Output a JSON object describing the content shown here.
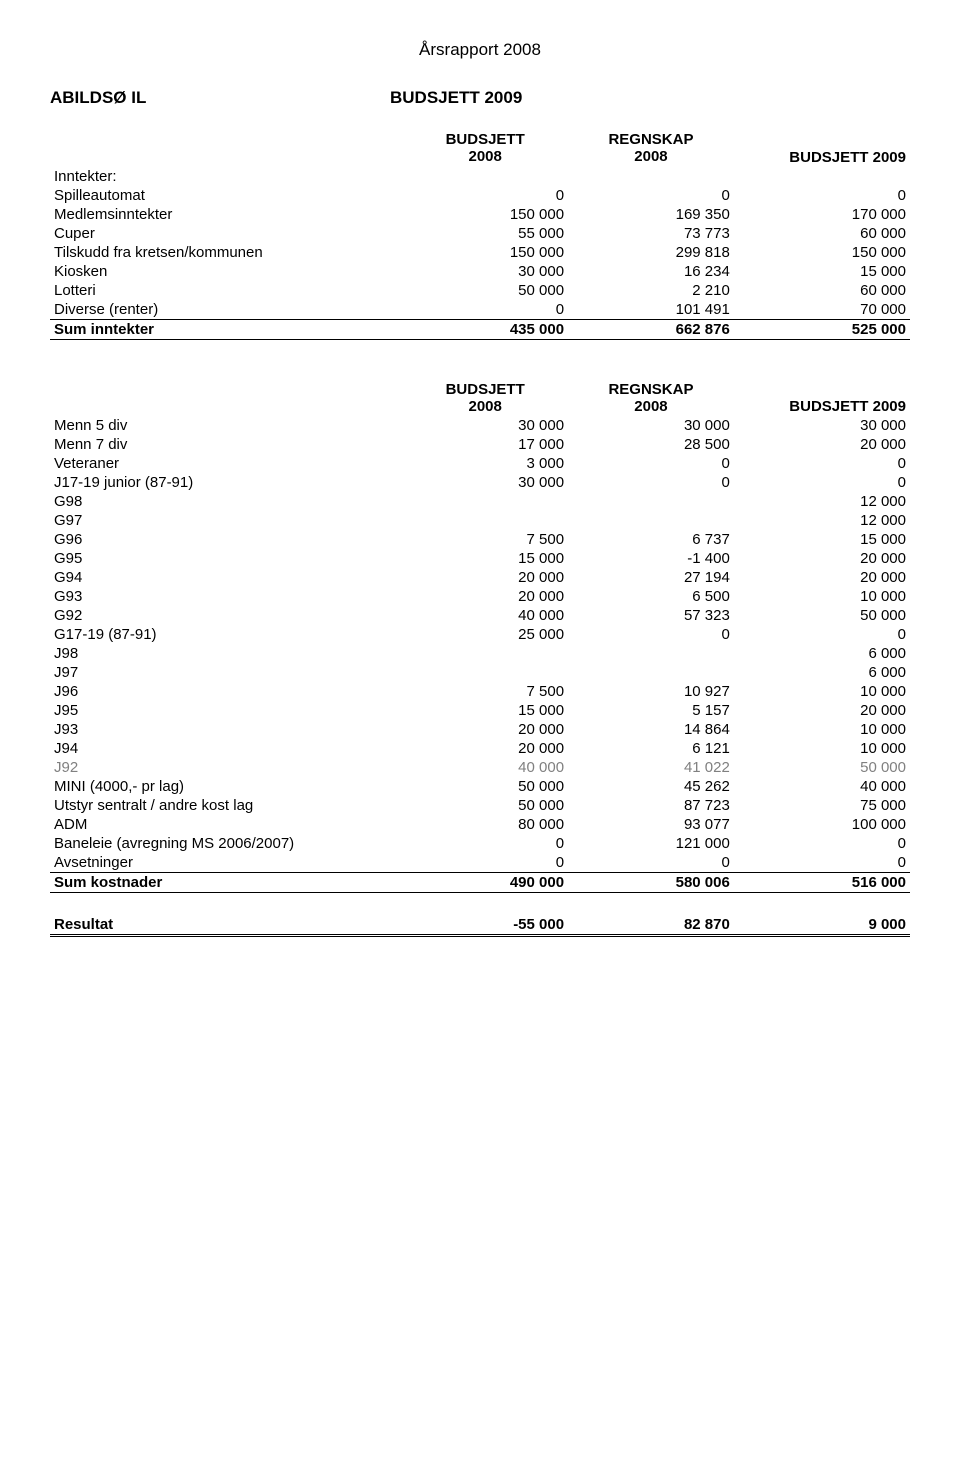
{
  "page_title": "Årsrapport 2008",
  "header": {
    "left": "ABILDSØ IL",
    "right": "BUDSJETT 2009"
  },
  "col_headers": {
    "c1_l1": "BUDSJETT",
    "c1_l2": "2008",
    "c2_l1": "REGNSKAP",
    "c2_l2": "2008",
    "c3": "BUDSJETT 2009"
  },
  "table1": {
    "section": "Inntekter:",
    "rows": [
      {
        "label": "Spilleautomat",
        "v1": "0",
        "v2": "0",
        "v3": "0"
      },
      {
        "label": "Medlemsinntekter",
        "v1": "150 000",
        "v2": "169 350",
        "v3": "170 000"
      },
      {
        "label": "Cuper",
        "v1": "55 000",
        "v2": "73 773",
        "v3": "60 000"
      },
      {
        "label": "Tilskudd fra kretsen/kommunen",
        "v1": "150 000",
        "v2": "299 818",
        "v3": "150 000"
      },
      {
        "label": "Kiosken",
        "v1": "30 000",
        "v2": "16 234",
        "v3": "15 000"
      },
      {
        "label": "Lotteri",
        "v1": "50 000",
        "v2": "2 210",
        "v3": "60 000"
      },
      {
        "label": "Diverse (renter)",
        "v1": "0",
        "v2": "101 491",
        "v3": "70 000"
      }
    ],
    "sum": {
      "label": "Sum  inntekter",
      "v1": "435 000",
      "v2": "662 876",
      "v3": "525 000"
    }
  },
  "table2": {
    "rows": [
      {
        "label": "Menn 5 div",
        "v1": "30 000",
        "v2": "30 000",
        "v3": "30 000"
      },
      {
        "label": "Menn 7 div",
        "v1": "17 000",
        "v2": "28 500",
        "v3": "20 000"
      },
      {
        "label": "Veteraner",
        "v1": "3 000",
        "v2": "0",
        "v3": "0"
      },
      {
        "label": "J17-19 junior (87-91)",
        "v1": "30 000",
        "v2": "0",
        "v3": "0"
      },
      {
        "label": "G98",
        "v1": "",
        "v2": "",
        "v3": "12 000"
      },
      {
        "label": "G97",
        "v1": "",
        "v2": "",
        "v3": "12 000"
      },
      {
        "label": "G96",
        "v1": "7 500",
        "v2": "6 737",
        "v3": "15 000"
      },
      {
        "label": "G95",
        "v1": "15 000",
        "v2": "-1 400",
        "v3": "20 000"
      },
      {
        "label": "G94",
        "v1": "20 000",
        "v2": "27 194",
        "v3": "20 000"
      },
      {
        "label": "G93",
        "v1": "20 000",
        "v2": "6 500",
        "v3": "10 000"
      },
      {
        "label": "G92",
        "v1": "40 000",
        "v2": "57 323",
        "v3": "50 000"
      },
      {
        "label": "G17-19 (87-91)",
        "v1": "25 000",
        "v2": "0",
        "v3": "0"
      },
      {
        "label": "J98",
        "v1": "",
        "v2": "",
        "v3": "6 000"
      },
      {
        "label": "J97",
        "v1": "",
        "v2": "",
        "v3": "6 000"
      },
      {
        "label": "J96",
        "v1": "7 500",
        "v2": "10 927",
        "v3": "10 000"
      },
      {
        "label": "J95",
        "v1": "15 000",
        "v2": "5 157",
        "v3": "20 000"
      },
      {
        "label": "J93",
        "v1": "20 000",
        "v2": "14 864",
        "v3": "10 000"
      },
      {
        "label": "J94",
        "v1": "20 000",
        "v2": "6 121",
        "v3": "10 000"
      },
      {
        "label": "J92",
        "v1": "40 000",
        "v2": "41 022",
        "v3": "50 000",
        "gray": true
      },
      {
        "label": "MINI (4000,- pr lag)",
        "v1": "50 000",
        "v2": "45 262",
        "v3": "40 000"
      },
      {
        "label": "Utstyr sentralt / andre kost lag",
        "v1": "50 000",
        "v2": "87 723",
        "v3": "75 000"
      },
      {
        "label": "ADM",
        "v1": "80 000",
        "v2": "93 077",
        "v3": "100 000"
      },
      {
        "label": "Baneleie (avregning MS 2006/2007)",
        "v1": "0",
        "v2": "121 000",
        "v3": "0"
      },
      {
        "label": "Avsetninger",
        "v1": "0",
        "v2": "0",
        "v3": "0"
      }
    ],
    "sum": {
      "label": "Sum kostnader",
      "v1": "490 000",
      "v2": "580 006",
      "v3": "516 000"
    }
  },
  "result": {
    "label": "Resultat",
    "v1": "-55 000",
    "v2": "82 870",
    "v3": "9 000"
  }
}
